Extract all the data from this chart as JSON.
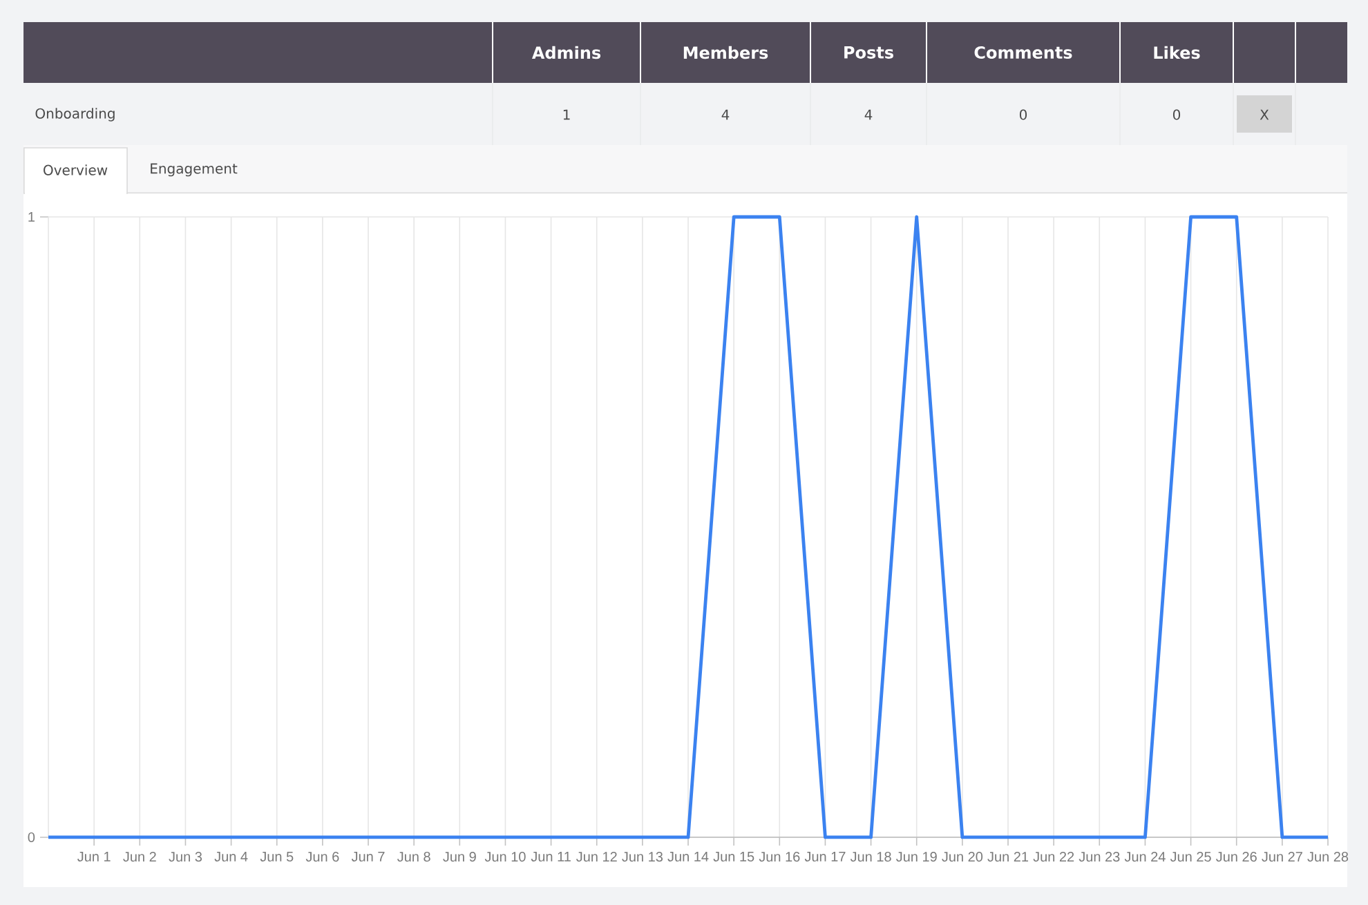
{
  "chart_data": [
    {
      "type": "other",
      "categories": [
        "Admins",
        "Members",
        "Posts",
        "Comments",
        "Likes"
      ],
      "values": [
        1,
        4,
        4,
        0,
        0
      ],
      "data_labels": true,
      "annotations": [
        "Onboarding",
        "X"
      ]
    },
    {
      "type": "line",
      "categories": [
        null,
        "Jun 1",
        "Jun 2",
        "Jun 3",
        "Jun 4",
        "Jun 5",
        "Jun 6",
        "Jun 7",
        "Jun 8",
        "Jun 9",
        "Jun 10",
        "Jun 11",
        "Jun 12",
        "Jun 13",
        "Jun 14",
        "Jun 15",
        "Jun 16",
        "Jun 17",
        "Jun 18",
        "Jun 19",
        "Jun 20",
        "Jun 21",
        "Jun 22",
        "Jun 23",
        "Jun 24",
        "Jun 25",
        "Jun 26",
        "Jun 27",
        "Jun 28"
      ],
      "values": [
        0,
        0,
        0,
        0,
        0,
        0,
        0,
        0,
        0,
        0,
        0,
        0,
        0,
        0,
        0,
        1,
        1,
        0,
        0,
        1,
        0,
        0,
        0,
        0,
        0,
        1,
        1,
        0,
        0
      ],
      "color": "#3b82f0",
      "ylim": [
        0,
        1
      ],
      "yticks": [
        0,
        1
      ],
      "grid": true,
      "annotations": [
        "Overview",
        "Engagement"
      ]
    }
  ]
}
